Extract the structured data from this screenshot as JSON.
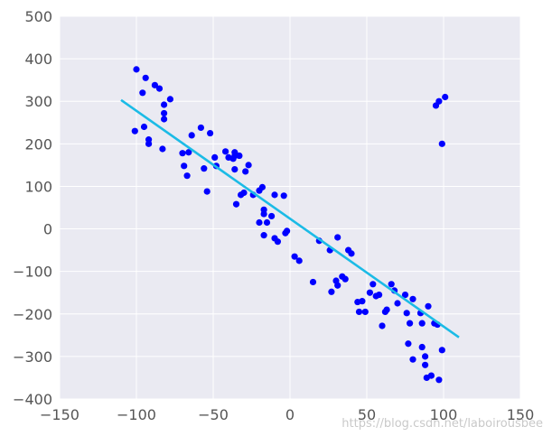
{
  "chart_data": {
    "type": "scatter",
    "title": "",
    "xlabel": "",
    "ylabel": "",
    "xlim": [
      -150,
      150
    ],
    "ylim": [
      -400,
      500
    ],
    "xticks": [
      -150,
      -100,
      -50,
      0,
      50,
      100,
      150
    ],
    "yticks": [
      -400,
      -300,
      -200,
      -100,
      0,
      100,
      200,
      300,
      400,
      500
    ],
    "xtick_labels": [
      "−150",
      "−100",
      "−50",
      "0",
      "50",
      "100",
      "150"
    ],
    "ytick_labels": [
      "−400",
      "−300",
      "−200",
      "−100",
      "0",
      "100",
      "200",
      "300",
      "400",
      "500"
    ],
    "grid": true,
    "colors": {
      "points": "#0000ff",
      "line": "#1bbbe6",
      "plot_bg": "#eaeaf2",
      "grid": "#ffffff"
    },
    "series": [
      {
        "kind": "scatter",
        "points": [
          [
            -100,
            375
          ],
          [
            -96,
            320
          ],
          [
            -94,
            355
          ],
          [
            -88,
            338
          ],
          [
            -85,
            330
          ],
          [
            -78,
            305
          ],
          [
            -82,
            292
          ],
          [
            -82,
            272
          ],
          [
            -82,
            258
          ],
          [
            -101,
            230
          ],
          [
            -95,
            240
          ],
          [
            -92,
            210
          ],
          [
            -92,
            200
          ],
          [
            -83,
            188
          ],
          [
            -64,
            220
          ],
          [
            -58,
            238
          ],
          [
            -52,
            225
          ],
          [
            -70,
            178
          ],
          [
            -66,
            180
          ],
          [
            -69,
            148
          ],
          [
            -67,
            125
          ],
          [
            -56,
            142
          ],
          [
            -49,
            168
          ],
          [
            -48,
            148
          ],
          [
            -42,
            182
          ],
          [
            -40,
            168
          ],
          [
            -36,
            180
          ],
          [
            -36,
            172
          ],
          [
            -37,
            165
          ],
          [
            -33,
            172
          ],
          [
            -29,
            135
          ],
          [
            -27,
            150
          ],
          [
            -36,
            140
          ],
          [
            -54,
            88
          ],
          [
            -32,
            80
          ],
          [
            -30,
            85
          ],
          [
            -24,
            80
          ],
          [
            -20,
            90
          ],
          [
            -18,
            98
          ],
          [
            -35,
            58
          ],
          [
            -17,
            45
          ],
          [
            -17,
            35
          ],
          [
            -12,
            30
          ],
          [
            -10,
            80
          ],
          [
            -4,
            78
          ],
          [
            -20,
            15
          ],
          [
            -15,
            15
          ],
          [
            -17,
            -15
          ],
          [
            -10,
            -22
          ],
          [
            -3,
            -10
          ],
          [
            -2,
            -5
          ],
          [
            -8,
            -30
          ],
          [
            3,
            -65
          ],
          [
            6,
            -75
          ],
          [
            15,
            -125
          ],
          [
            19,
            -28
          ],
          [
            26,
            -50
          ],
          [
            31,
            -20
          ],
          [
            38,
            -50
          ],
          [
            40,
            -58
          ],
          [
            27,
            -148
          ],
          [
            30,
            -122
          ],
          [
            31,
            -133
          ],
          [
            34,
            -112
          ],
          [
            36,
            -118
          ],
          [
            44,
            -172
          ],
          [
            45,
            -195
          ],
          [
            47,
            -170
          ],
          [
            49,
            -195
          ],
          [
            52,
            -150
          ],
          [
            54,
            -130
          ],
          [
            56,
            -158
          ],
          [
            58,
            -155
          ],
          [
            60,
            -228
          ],
          [
            62,
            -195
          ],
          [
            63,
            -190
          ],
          [
            66,
            -130
          ],
          [
            68,
            -145
          ],
          [
            70,
            -175
          ],
          [
            75,
            -155
          ],
          [
            76,
            -198
          ],
          [
            78,
            -222
          ],
          [
            80,
            -165
          ],
          [
            85,
            -198
          ],
          [
            86,
            -222
          ],
          [
            90,
            -182
          ],
          [
            94,
            -222
          ],
          [
            96,
            -225
          ],
          [
            77,
            -270
          ],
          [
            80,
            -307
          ],
          [
            86,
            -278
          ],
          [
            88,
            -300
          ],
          [
            88,
            -320
          ],
          [
            89,
            -350
          ],
          [
            92,
            -345
          ],
          [
            97,
            -355
          ],
          [
            99,
            -285
          ],
          [
            95,
            290
          ],
          [
            97,
            300
          ],
          [
            101,
            310
          ],
          [
            99,
            200
          ]
        ]
      },
      {
        "kind": "line",
        "points": [
          [
            -110,
            303
          ],
          [
            110,
            -255
          ]
        ]
      }
    ]
  },
  "watermark": "https://blog.csdn.net/laboirousbee"
}
